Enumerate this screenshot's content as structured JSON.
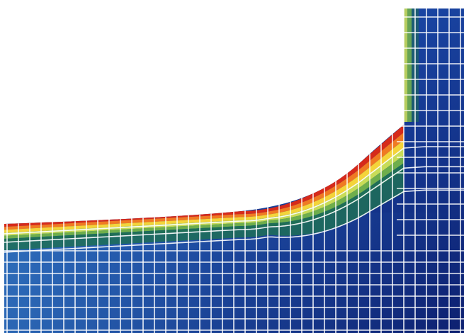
{
  "figure": {
    "kind": "finite-element mesh contour plot",
    "background": "#ffffff",
    "mesh_line_color": "#ffffff",
    "contour_palette": [
      {
        "band": "outer",
        "color": "#d62a1a"
      },
      {
        "band": "2",
        "color": "#f07a22"
      },
      {
        "band": "3",
        "color": "#f4d43a"
      },
      {
        "band": "4",
        "color": "#c8dc58"
      },
      {
        "band": "5",
        "color": "#6fae4c"
      },
      {
        "band": "6",
        "color": "#1f6e57"
      },
      {
        "band": "7",
        "color": "#2c6fb8"
      },
      {
        "band": "8",
        "color": "#1d4aa6"
      },
      {
        "band": "9",
        "color": "#14328a"
      },
      {
        "band": "inner",
        "color": "#0e2272"
      }
    ]
  }
}
